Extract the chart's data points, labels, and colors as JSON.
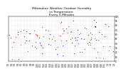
{
  "title": "Milwaukee Weather Outdoor Humidity\nvs Temperature\nEvery 5 Minutes",
  "title_fontsize": 3.2,
  "background_color": "#ffffff",
  "grid_color": "#aaaaaa",
  "dot_size": 0.4,
  "tick_fontsize": 2.0,
  "ytick_vals": [
    0,
    10,
    20,
    30,
    40,
    50,
    60,
    70,
    80,
    90,
    100
  ],
  "xtick_labels": [
    "1/1",
    "1/2",
    "1/3",
    "1/4",
    "1/5",
    "1/6",
    "1/7",
    "1/8",
    "1/9",
    "1/10",
    "1/11",
    "1/12",
    "1/13",
    "1/14",
    "1/15",
    "1/16",
    "1/17",
    "1/18",
    "1/19",
    "1/20",
    "1/21",
    "1/22",
    "1/23",
    "1/24",
    "1/25",
    "1/26",
    "1/27",
    "1/28",
    "1/29",
    "1/30",
    "1/31",
    "2/1",
    "2/2",
    "2/3"
  ],
  "blue_seed": 10,
  "red_seed": 20,
  "n_points": 60
}
